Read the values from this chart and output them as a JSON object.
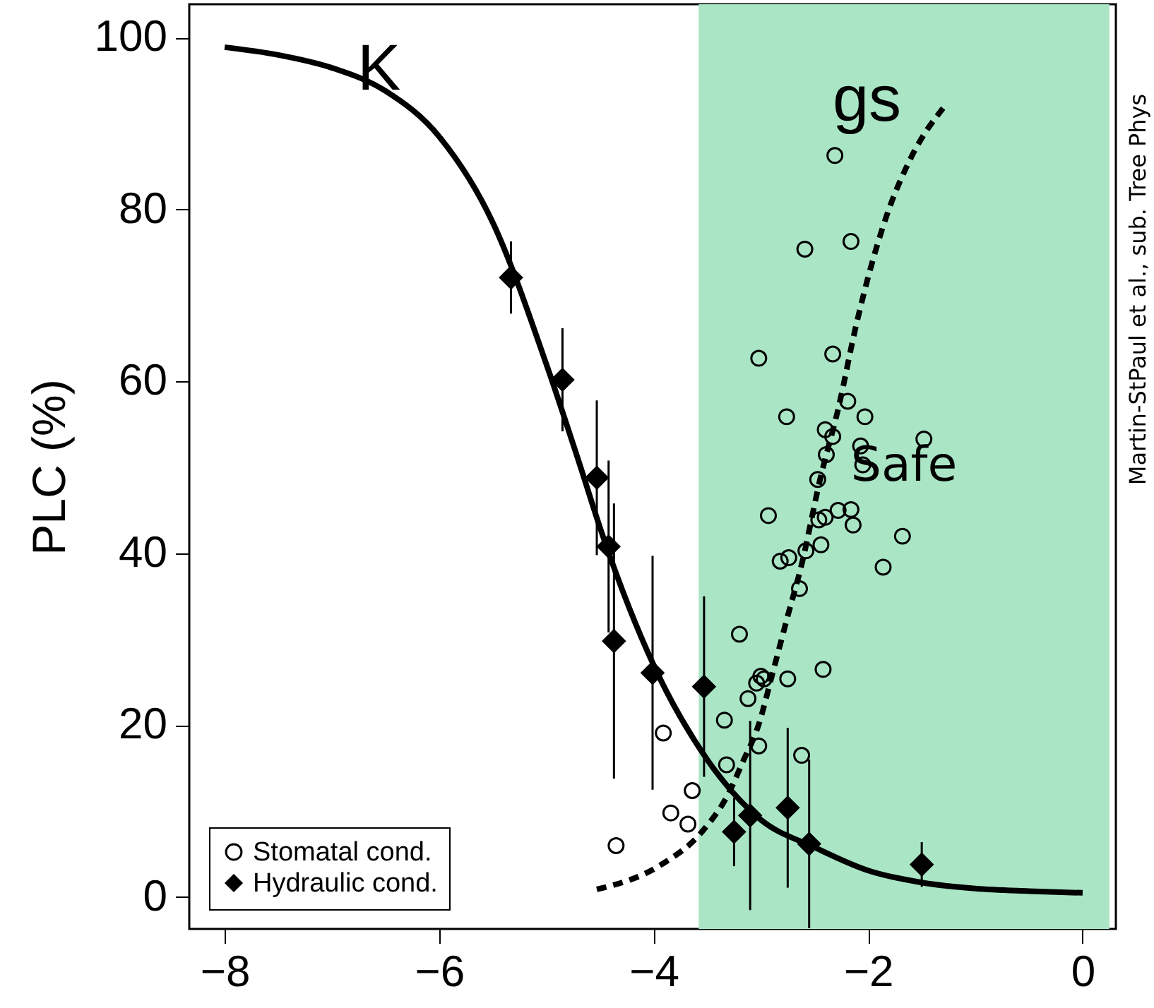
{
  "chart_data": {
    "type": "scatter",
    "ylabel": "PLC (%)",
    "xlim": [
      -8.33,
      0.31
    ],
    "xticks": [
      -8,
      -6,
      -4,
      -2,
      0
    ],
    "ylim": [
      -3.7,
      103.9
    ],
    "yticks": [
      0,
      20,
      40,
      60,
      80,
      100
    ],
    "grid": false,
    "legend": "bottom left",
    "bands": [
      {
        "axis": "x",
        "from": -3.58,
        "to": 0.25,
        "label": "Safe",
        "color": "#aae6c6"
      }
    ],
    "annotations": [
      "Martin-StPaul et al., sub. Tree Phys"
    ],
    "series": [
      {
        "name": "Stomatal cond.",
        "type": "scatter",
        "marker": "circle",
        "color": "#000000",
        "x": [
          -4.35,
          -3.84,
          -3.68,
          -3.64,
          -3.91,
          -3.32,
          -3.34,
          -3.2,
          -3.02,
          -2.62,
          -3.12,
          -3.04,
          -3.0,
          -2.97,
          -2.75,
          -2.42,
          -2.64,
          -2.82,
          -2.74,
          -2.58,
          -2.44,
          -1.86,
          -1.68,
          -2.31,
          -2.16,
          -2.59,
          -3.02,
          -2.33,
          -2.19,
          -2.76,
          -2.03,
          -2.4,
          -2.33,
          -2.07,
          -1.48,
          -2.39,
          -2.05,
          -2.47,
          -2.93,
          -2.28,
          -2.16,
          -2.46,
          -2.4,
          -2.14
        ],
        "values": [
          6.0,
          9.8,
          8.5,
          12.4,
          19.1,
          15.4,
          20.6,
          30.6,
          17.6,
          16.5,
          23.1,
          24.9,
          25.7,
          25.4,
          25.4,
          26.5,
          35.9,
          39.1,
          39.5,
          40.3,
          41.0,
          38.4,
          42.0,
          86.3,
          76.3,
          75.4,
          62.7,
          63.2,
          57.7,
          55.9,
          55.9,
          54.4,
          53.6,
          52.5,
          53.3,
          51.5,
          50.3,
          48.6,
          44.4,
          45.0,
          45.1,
          43.9,
          44.2,
          43.3
        ]
      },
      {
        "name": "gs",
        "type": "line",
        "line_style": "dashed",
        "color": "#000000",
        "x": [
          -4.53,
          -3.94,
          -3.55,
          -3.3,
          -3.17,
          -3.02,
          -2.89,
          -2.75,
          -2.62,
          -2.45,
          -2.27,
          -2.12,
          -1.99,
          -1.83,
          -1.61,
          -1.27
        ],
        "values": [
          0.9,
          3.7,
          7.6,
          12.1,
          15.7,
          20.1,
          26.1,
          32.7,
          38.7,
          48.5,
          57.3,
          66.1,
          72.6,
          79.2,
          85.8,
          92.3
        ]
      },
      {
        "name": "Hydraulic cond.",
        "type": "scatter",
        "marker": "diamond",
        "color": "#000000",
        "x": [
          -5.33,
          -4.85,
          -4.53,
          -4.42,
          -4.37,
          -4.01,
          -3.53,
          -3.25,
          -3.1,
          -2.75,
          -2.55,
          -1.5
        ],
        "values": [
          72.1,
          60.2,
          48.8,
          40.8,
          29.8,
          26.1,
          24.5,
          7.6,
          9.5,
          10.4,
          6.2,
          3.8
        ],
        "errors": [
          4.2,
          6,
          9,
          10,
          16,
          13.6,
          10.5,
          4,
          11,
          9.3,
          9.8,
          2.6
        ]
      },
      {
        "name": "K",
        "type": "line",
        "line_style": "solid",
        "color": "#000000",
        "x": [
          -8,
          -7.5,
          -7,
          -6.5,
          -6,
          -5.5,
          -5,
          -4.68,
          -4.5,
          -4,
          -3.5,
          -3,
          -2.5,
          -2,
          -1.5,
          -1,
          -0.5,
          0
        ],
        "values": [
          98.9,
          98.0,
          96.5,
          93.8,
          88.5,
          78.5,
          62,
          50,
          43,
          27,
          16,
          9,
          5.8,
          3.1,
          1.7,
          1.0,
          0.7,
          0.5
        ]
      }
    ]
  }
}
